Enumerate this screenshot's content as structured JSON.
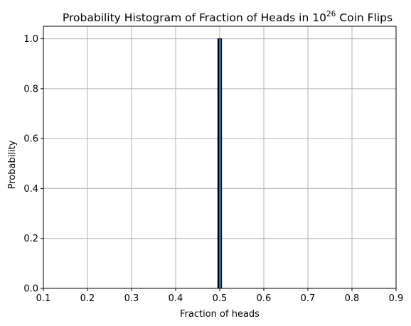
{
  "chart_data": {
    "type": "bar",
    "title": {
      "prefix": "Probability Histogram of Fraction of Heads in 10",
      "exponent": "26",
      "suffix": " Coin Flips"
    },
    "xlabel": "Fraction of heads",
    "ylabel": "Probability",
    "xlim": [
      0.1,
      0.9
    ],
    "ylim": [
      0,
      1.05
    ],
    "xticks": [
      0.1,
      0.2,
      0.3,
      0.4,
      0.5,
      0.6,
      0.7,
      0.8,
      0.9
    ],
    "xtick_labels": [
      "0.1",
      "0.2",
      "0.3",
      "0.4",
      "0.5",
      "0.6",
      "0.7",
      "0.8",
      "0.9"
    ],
    "yticks": [
      0.0,
      0.2,
      0.4,
      0.6,
      0.8,
      1.0
    ],
    "ytick_labels": [
      "0.0",
      "0.2",
      "0.4",
      "0.6",
      "0.8",
      "1.0"
    ],
    "grid": true,
    "bars": [
      {
        "x_start": 0.495,
        "x_end": 0.505,
        "value": 1.0
      }
    ],
    "colors": {
      "bar_fill": "#1f77b4",
      "bar_edge": "#000000",
      "grid": "#b0b0b0",
      "axes": "#000000"
    }
  }
}
